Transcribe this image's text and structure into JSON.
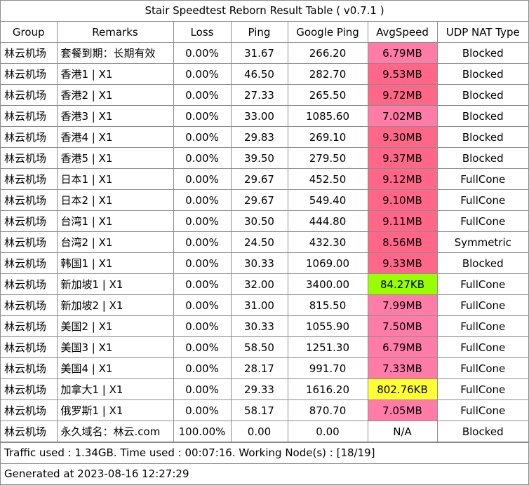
{
  "title": "Stair Speedtest Reborn Result Table ( v0.7.1 )",
  "columns": [
    "Group",
    "Remarks",
    "Loss",
    "Ping",
    "Google Ping",
    "AvgSpeed",
    "UDP NAT Type"
  ],
  "rows": [
    {
      "group": "林云机场",
      "remarks": "套餐到期：长期有效",
      "loss": "0.00%",
      "ping": "31.67",
      "google_ping": "266.20",
      "speed": "6.79MB",
      "speed_color": "#ff7ba8",
      "nat": "Blocked"
    },
    {
      "group": "林云机场",
      "remarks": "香港1 | X1",
      "loss": "0.00%",
      "ping": "46.50",
      "google_ping": "282.70",
      "speed": "9.53MB",
      "speed_color": "#ff6688",
      "nat": "Blocked"
    },
    {
      "group": "林云机场",
      "remarks": "香港2 | X1",
      "loss": "0.00%",
      "ping": "27.33",
      "google_ping": "265.50",
      "speed": "9.72MB",
      "speed_color": "#ff6688",
      "nat": "Blocked"
    },
    {
      "group": "林云机场",
      "remarks": "香港3 | X1",
      "loss": "0.00%",
      "ping": "33.00",
      "google_ping": "1085.60",
      "speed": "7.02MB",
      "speed_color": "#ff7ba8",
      "nat": "Blocked"
    },
    {
      "group": "林云机场",
      "remarks": "香港4 | X1",
      "loss": "0.00%",
      "ping": "29.83",
      "google_ping": "269.10",
      "speed": "9.30MB",
      "speed_color": "#ff6688",
      "nat": "Blocked"
    },
    {
      "group": "林云机场",
      "remarks": "香港5 | X1",
      "loss": "0.00%",
      "ping": "39.50",
      "google_ping": "279.50",
      "speed": "9.37MB",
      "speed_color": "#ff6688",
      "nat": "Blocked"
    },
    {
      "group": "林云机场",
      "remarks": "日本1 | X1",
      "loss": "0.00%",
      "ping": "29.67",
      "google_ping": "452.50",
      "speed": "9.12MB",
      "speed_color": "#ff6688",
      "nat": "FullCone"
    },
    {
      "group": "林云机场",
      "remarks": "日本2 | X1",
      "loss": "0.00%",
      "ping": "29.67",
      "google_ping": "549.40",
      "speed": "9.10MB",
      "speed_color": "#ff6688",
      "nat": "FullCone"
    },
    {
      "group": "林云机场",
      "remarks": "台湾1 | X1",
      "loss": "0.00%",
      "ping": "30.50",
      "google_ping": "444.80",
      "speed": "9.11MB",
      "speed_color": "#ff6688",
      "nat": "FullCone"
    },
    {
      "group": "林云机场",
      "remarks": "台湾2 | X1",
      "loss": "0.00%",
      "ping": "24.50",
      "google_ping": "432.30",
      "speed": "8.56MB",
      "speed_color": "#ff6688",
      "nat": "Symmetric"
    },
    {
      "group": "林云机场",
      "remarks": "韩国1 | X1",
      "loss": "0.00%",
      "ping": "30.33",
      "google_ping": "1069.00",
      "speed": "9.33MB",
      "speed_color": "#ff6688",
      "nat": "Blocked"
    },
    {
      "group": "林云机场",
      "remarks": "新加坡1 | X1",
      "loss": "0.00%",
      "ping": "32.00",
      "google_ping": "3400.00",
      "speed": "84.27KB",
      "speed_color": "#99ff00",
      "nat": "FullCone"
    },
    {
      "group": "林云机场",
      "remarks": "新加坡2 | X1",
      "loss": "0.00%",
      "ping": "31.00",
      "google_ping": "815.50",
      "speed": "7.99MB",
      "speed_color": "#ff7ba8",
      "nat": "FullCone"
    },
    {
      "group": "林云机场",
      "remarks": "美国2 | X1",
      "loss": "0.00%",
      "ping": "30.33",
      "google_ping": "1055.90",
      "speed": "7.50MB",
      "speed_color": "#ff7ba8",
      "nat": "FullCone"
    },
    {
      "group": "林云机场",
      "remarks": "美国3 | X1",
      "loss": "0.00%",
      "ping": "58.50",
      "google_ping": "1251.30",
      "speed": "6.79MB",
      "speed_color": "#ff7ba8",
      "nat": "FullCone"
    },
    {
      "group": "林云机场",
      "remarks": "美国4 | X1",
      "loss": "0.00%",
      "ping": "28.17",
      "google_ping": "991.70",
      "speed": "7.33MB",
      "speed_color": "#ff7ba8",
      "nat": "FullCone"
    },
    {
      "group": "林云机场",
      "remarks": "加拿大1 | X1",
      "loss": "0.00%",
      "ping": "29.33",
      "google_ping": "1616.20",
      "speed": "802.76KB",
      "speed_color": "#ffff33",
      "nat": "FullCone"
    },
    {
      "group": "林云机场",
      "remarks": "俄罗斯1 | X1",
      "loss": "0.00%",
      "ping": "58.17",
      "google_ping": "870.70",
      "speed": "7.05MB",
      "speed_color": "#ff7ba8",
      "nat": "FullCone"
    },
    {
      "group": "林云机场",
      "remarks": "永久域名：林云.com",
      "loss": "100.00%",
      "ping": "0.00",
      "google_ping": "0.00",
      "speed": "N/A",
      "speed_color": "#ffffff",
      "nat": "Blocked"
    }
  ],
  "footer": {
    "traffic": "Traffic used : 1.34GB. Time used : 00:07:16. Working Node(s) : [18/19]",
    "generated": "Generated at 2023-08-16 12:27:29"
  }
}
